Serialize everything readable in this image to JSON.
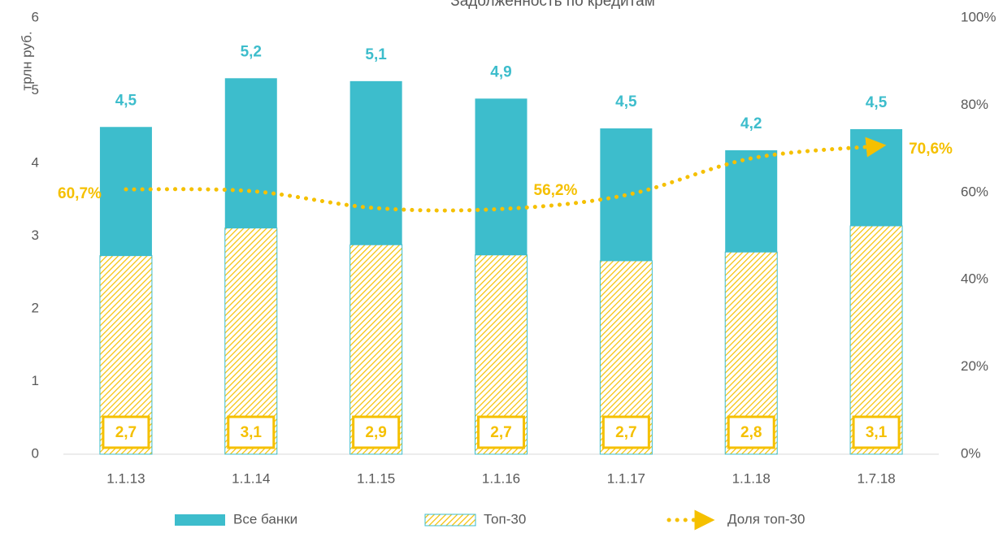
{
  "chart_data": {
    "type": "bar",
    "title": "Задолженность по кредитам",
    "y_label": "трлн  руб.",
    "categories": [
      "1.1.13",
      "1.1.14",
      "1.1.15",
      "1.1.16",
      "1.1.17",
      "1.1.18",
      "1.7.18"
    ],
    "series": [
      {
        "name": "Все банки",
        "color": "#3dbdcc",
        "values": [
          4.5,
          5.17,
          5.13,
          4.89,
          4.48,
          4.18,
          4.47
        ],
        "value_labels": [
          "4,5",
          "5,2",
          "5,1",
          "4,9",
          "4,5",
          "4,2",
          "4,5"
        ]
      },
      {
        "name": "Топ-30",
        "color": "#f5c000",
        "pattern": "hatch",
        "values": [
          2.73,
          3.11,
          2.88,
          2.74,
          2.66,
          2.78,
          3.14
        ],
        "value_labels": [
          "2,7",
          "3,1",
          "2,9",
          "2,7",
          "2,7",
          "2,8",
          "3,1"
        ]
      },
      {
        "name": "Доля топ-30",
        "type": "line",
        "style": "dotted",
        "axis": "y2",
        "color": "#f5c000",
        "values": [
          60.7,
          60.3,
          56.4,
          56.2,
          59.4,
          67.8,
          70.6
        ],
        "value_labels": [
          "60,7%",
          null,
          null,
          "56,2%",
          null,
          null,
          "70,6%"
        ]
      }
    ],
    "ylim": [
      0,
      6
    ],
    "yticks": [
      0,
      1,
      2,
      3,
      4,
      5,
      6
    ],
    "y2lim": [
      0,
      100
    ],
    "y2ticks": [
      {
        "value": 0,
        "label": "0%"
      },
      {
        "value": 20,
        "label": "20%"
      },
      {
        "value": 40,
        "label": "40%"
      },
      {
        "value": 60,
        "label": "60%"
      },
      {
        "value": 80,
        "label": "80%"
      },
      {
        "value": 100,
        "label": "100%"
      }
    ],
    "grid": false,
    "legend": "bottom"
  }
}
